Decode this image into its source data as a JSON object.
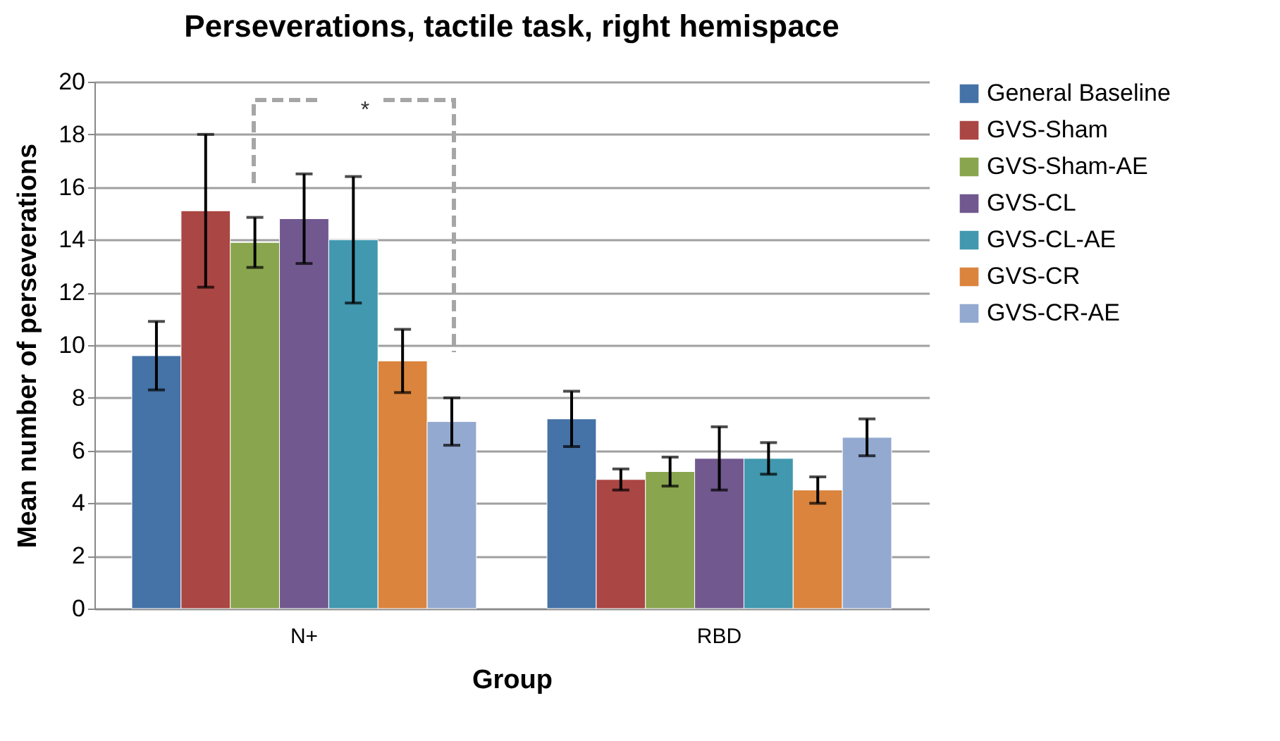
{
  "chart_data": {
    "type": "bar",
    "title": "Perseverations, tactile task, right hemispace",
    "xlabel": "Group",
    "ylabel": "Mean number of perseverations",
    "categories": [
      "N+",
      "RBD"
    ],
    "series": [
      {
        "name": "General Baseline",
        "color": "#4572a7",
        "values": [
          9.6,
          7.2
        ],
        "errors": [
          1.3,
          1.05
        ]
      },
      {
        "name": "GVS-Sham",
        "color": "#aa4643",
        "values": [
          15.1,
          4.9
        ],
        "errors": [
          2.9,
          0.4
        ]
      },
      {
        "name": "GVS-Sham-AE",
        "color": "#89a54e",
        "values": [
          13.9,
          5.2
        ],
        "errors": [
          0.95,
          0.55
        ]
      },
      {
        "name": "GVS-CL",
        "color": "#71588f",
        "values": [
          14.8,
          5.7
        ],
        "errors": [
          1.7,
          1.2
        ]
      },
      {
        "name": "GVS-CL-AE",
        "color": "#4198af",
        "values": [
          14.0,
          5.7
        ],
        "errors": [
          2.4,
          0.6
        ]
      },
      {
        "name": "GVS-CR",
        "color": "#db843d",
        "values": [
          9.4,
          4.5
        ],
        "errors": [
          1.2,
          0.5
        ]
      },
      {
        "name": "GVS-CR-AE",
        "color": "#93a9cf",
        "values": [
          7.1,
          6.5
        ],
        "errors": [
          0.9,
          0.7
        ]
      }
    ],
    "annotations": [
      "*"
    ],
    "ylim": [
      0,
      20
    ],
    "yticks": [
      0,
      2,
      4,
      6,
      8,
      10,
      12,
      14,
      16,
      18,
      20
    ],
    "grid": "y",
    "legend": "right"
  }
}
